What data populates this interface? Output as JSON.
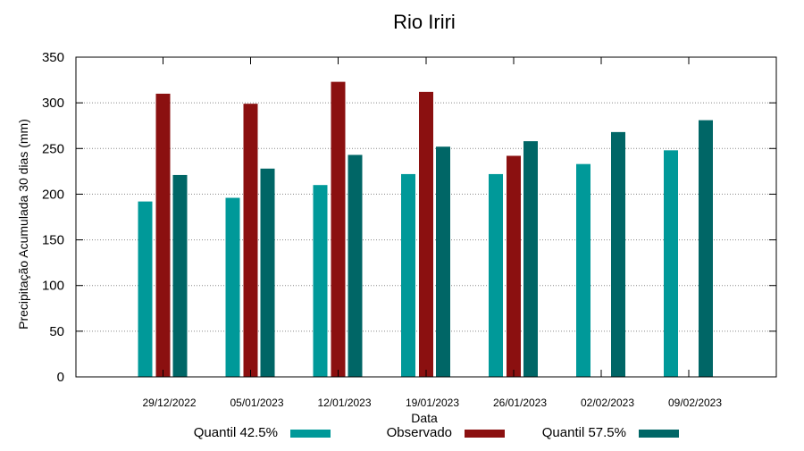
{
  "chart_data": {
    "type": "bar",
    "title": "Rio Iriri",
    "xlabel": "Data",
    "ylabel": "Precipitação Acumulada 30 dias (mm)",
    "ylim": [
      0,
      350
    ],
    "yticks": [
      0,
      50,
      100,
      150,
      200,
      250,
      300,
      350
    ],
    "grid": true,
    "legend_position": "bottom",
    "categories": [
      "29/12/2022",
      "05/01/2023",
      "12/01/2023",
      "19/01/2023",
      "26/01/2023",
      "02/02/2023",
      "09/02/2023"
    ],
    "series": [
      {
        "name": "Quantil 42.5%",
        "color": "#009999",
        "values": [
          192,
          196,
          210,
          222,
          222,
          233,
          248
        ]
      },
      {
        "name": "Observado",
        "color": "#8b1010",
        "values": [
          310,
          299,
          323,
          312,
          242,
          null,
          null
        ]
      },
      {
        "name": "Quantil 57.5%",
        "color": "#006666",
        "values": [
          221,
          228,
          243,
          252,
          258,
          268,
          281
        ]
      }
    ]
  }
}
